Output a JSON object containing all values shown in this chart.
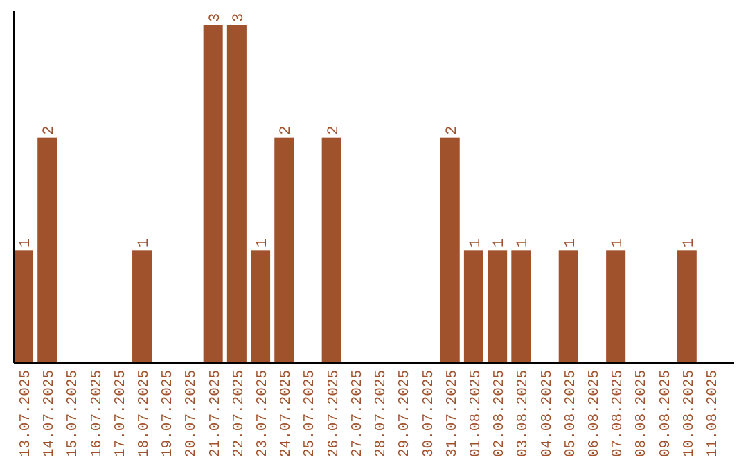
{
  "chart_data": {
    "type": "bar",
    "categories": [
      "13.07.2025",
      "14.07.2025",
      "15.07.2025",
      "16.07.2025",
      "17.07.2025",
      "18.07.2025",
      "19.07.2025",
      "20.07.2025",
      "21.07.2025",
      "22.07.2025",
      "23.07.2025",
      "24.07.2025",
      "25.07.2025",
      "26.07.2025",
      "27.07.2025",
      "28.07.2025",
      "29.07.2025",
      "30.07.2025",
      "31.07.2025",
      "01.08.2025",
      "02.08.2025",
      "03.08.2025",
      "04.08.2025",
      "05.08.2025",
      "06.08.2025",
      "07.08.2025",
      "08.08.2025",
      "09.08.2025",
      "10.08.2025",
      "11.08.2025"
    ],
    "values": [
      1,
      2,
      0,
      0,
      0,
      1,
      0,
      0,
      3,
      3,
      1,
      2,
      0,
      2,
      0,
      0,
      0,
      0,
      2,
      1,
      1,
      1,
      0,
      1,
      0,
      1,
      0,
      0,
      1,
      0
    ],
    "value_labels": [
      "1",
      "2",
      null,
      null,
      null,
      "1",
      null,
      null,
      "3",
      "3",
      "1",
      "2",
      null,
      "2",
      null,
      null,
      null,
      null,
      "2",
      "1",
      "1",
      "1",
      null,
      "1",
      null,
      "1",
      null,
      null,
      "1",
      null
    ],
    "color": "#a0522d"
  }
}
